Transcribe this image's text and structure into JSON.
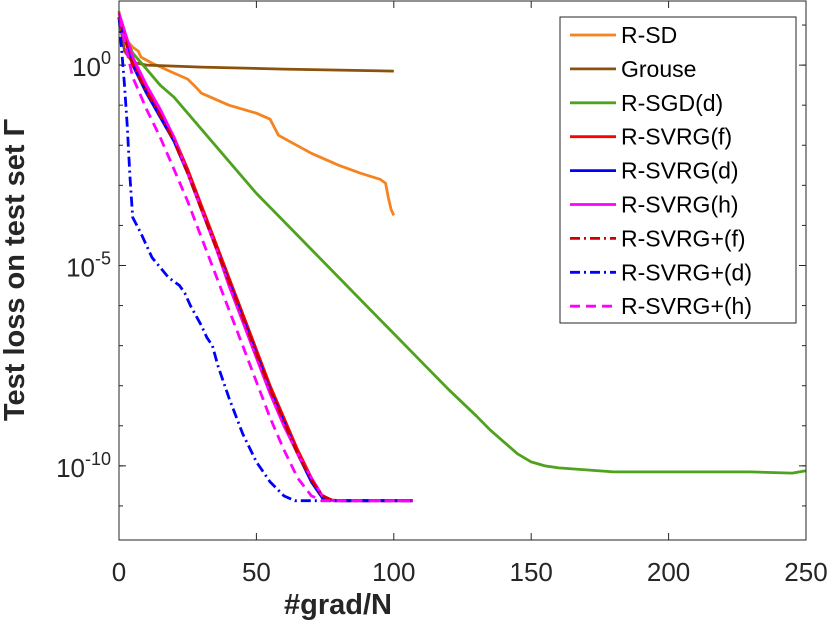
{
  "chart_data": {
    "type": "line",
    "title": "",
    "xlabel": "#grad/N",
    "ylabel": "Test loss on test set Γ",
    "xlim": [
      0,
      250
    ],
    "ylog10lim": [
      -11.85,
      1.6
    ],
    "xticks": [
      {
        "value": 0,
        "label": "0"
      },
      {
        "value": 50,
        "label": "50"
      },
      {
        "value": 100,
        "label": "100"
      },
      {
        "value": 150,
        "label": "150"
      },
      {
        "value": 200,
        "label": "200"
      },
      {
        "value": 250,
        "label": "250"
      }
    ],
    "yticks": [
      {
        "exp": 0,
        "label": "10",
        "sup": "0"
      },
      {
        "exp": -5,
        "label": "10",
        "sup": "-5"
      },
      {
        "exp": -10,
        "label": "10",
        "sup": "-10"
      }
    ],
    "legend_position": "top-right",
    "series": [
      {
        "name": "R-SD",
        "color": "#f5831f",
        "dash": "solid",
        "points": [
          [
            0,
            1.35
          ],
          [
            1,
            0.8
          ],
          [
            3,
            0.6
          ],
          [
            5,
            0.45
          ],
          [
            7,
            0.35
          ],
          [
            8,
            0.2
          ],
          [
            12,
            0.05
          ],
          [
            20,
            -0.2
          ],
          [
            25,
            -0.35
          ],
          [
            28,
            -0.55
          ],
          [
            30,
            -0.7
          ],
          [
            40,
            -1.0
          ],
          [
            50,
            -1.2
          ],
          [
            55,
            -1.35
          ],
          [
            58,
            -1.75
          ],
          [
            62,
            -1.9
          ],
          [
            70,
            -2.2
          ],
          [
            80,
            -2.5
          ],
          [
            88,
            -2.7
          ],
          [
            95,
            -2.85
          ],
          [
            97,
            -2.95
          ],
          [
            98,
            -3.3
          ],
          [
            99,
            -3.6
          ],
          [
            100,
            -3.75
          ]
        ]
      },
      {
        "name": "Grouse",
        "color": "#8c510a",
        "dash": "solid",
        "points": [
          [
            0,
            1.2
          ],
          [
            2,
            0.35
          ],
          [
            5,
            0.07
          ],
          [
            10,
            0.0
          ],
          [
            30,
            -0.05
          ],
          [
            60,
            -0.1
          ],
          [
            100,
            -0.15
          ]
        ]
      },
      {
        "name": "R-SGD(d)",
        "color": "#4ea21d",
        "dash": "solid",
        "points": [
          [
            0,
            1.1
          ],
          [
            5,
            0.3
          ],
          [
            10,
            -0.1
          ],
          [
            15,
            -0.5
          ],
          [
            20,
            -0.8
          ],
          [
            25,
            -1.2
          ],
          [
            30,
            -1.6
          ],
          [
            40,
            -2.4
          ],
          [
            50,
            -3.2
          ],
          [
            60,
            -3.9
          ],
          [
            70,
            -4.6
          ],
          [
            80,
            -5.3
          ],
          [
            90,
            -6.0
          ],
          [
            100,
            -6.7
          ],
          [
            110,
            -7.4
          ],
          [
            120,
            -8.1
          ],
          [
            130,
            -8.75
          ],
          [
            135,
            -9.1
          ],
          [
            140,
            -9.4
          ],
          [
            145,
            -9.7
          ],
          [
            150,
            -9.9
          ],
          [
            155,
            -10.0
          ],
          [
            160,
            -10.05
          ],
          [
            170,
            -10.1
          ],
          [
            180,
            -10.15
          ],
          [
            200,
            -10.15
          ],
          [
            230,
            -10.15
          ],
          [
            245,
            -10.18
          ],
          [
            250,
            -10.12
          ]
        ]
      },
      {
        "name": "R-SVRG(f)",
        "color": "#ff0000",
        "dash": "solid",
        "points": [
          [
            0,
            1.2
          ],
          [
            5,
            0.1
          ],
          [
            10,
            -0.6
          ],
          [
            15,
            -1.2
          ],
          [
            20,
            -1.8
          ],
          [
            25,
            -2.6
          ],
          [
            30,
            -3.5
          ],
          [
            35,
            -4.4
          ],
          [
            40,
            -5.3
          ],
          [
            45,
            -6.2
          ],
          [
            50,
            -7.1
          ],
          [
            55,
            -8.0
          ],
          [
            60,
            -8.8
          ],
          [
            65,
            -9.6
          ],
          [
            70,
            -10.3
          ],
          [
            73,
            -10.7
          ],
          [
            77,
            -10.85
          ],
          [
            80,
            -10.87
          ],
          [
            107,
            -10.87
          ]
        ]
      },
      {
        "name": "R-SVRG(d)",
        "color": "#0000ff",
        "dash": "solid",
        "points": [
          [
            0,
            1.2
          ],
          [
            5,
            0.0
          ],
          [
            10,
            -0.7
          ],
          [
            15,
            -1.3
          ],
          [
            20,
            -1.9
          ],
          [
            25,
            -2.7
          ],
          [
            30,
            -3.6
          ],
          [
            35,
            -4.5
          ],
          [
            40,
            -5.4
          ],
          [
            45,
            -6.3
          ],
          [
            50,
            -7.2
          ],
          [
            55,
            -8.1
          ],
          [
            60,
            -8.9
          ],
          [
            65,
            -9.7
          ],
          [
            70,
            -10.4
          ],
          [
            74,
            -10.8
          ],
          [
            78,
            -10.87
          ],
          [
            107,
            -10.87
          ]
        ]
      },
      {
        "name": "R-SVRG(h)",
        "color": "#ff00ff",
        "dash": "solid",
        "points": [
          [
            0,
            1.3
          ],
          [
            5,
            0.2
          ],
          [
            10,
            -0.5
          ],
          [
            15,
            -1.1
          ],
          [
            20,
            -1.8
          ],
          [
            25,
            -2.7
          ],
          [
            30,
            -3.6
          ],
          [
            35,
            -4.5
          ],
          [
            40,
            -5.5
          ],
          [
            45,
            -6.4
          ],
          [
            50,
            -7.3
          ],
          [
            55,
            -8.2
          ],
          [
            60,
            -9.0
          ],
          [
            65,
            -9.7
          ],
          [
            70,
            -10.3
          ],
          [
            74,
            -10.75
          ],
          [
            78,
            -10.87
          ],
          [
            107,
            -10.87
          ]
        ]
      },
      {
        "name": "R-SVRG+(f)",
        "color": "#cc0000",
        "dash": "dashdot",
        "points": [
          [
            0,
            1.15
          ],
          [
            5,
            0.0
          ],
          [
            10,
            -0.65
          ],
          [
            15,
            -1.25
          ],
          [
            20,
            -1.9
          ],
          [
            25,
            -2.7
          ],
          [
            30,
            -3.6
          ],
          [
            35,
            -4.5
          ],
          [
            40,
            -5.4
          ],
          [
            45,
            -6.3
          ],
          [
            50,
            -7.2
          ],
          [
            55,
            -8.1
          ],
          [
            60,
            -8.9
          ],
          [
            65,
            -9.7
          ],
          [
            70,
            -10.35
          ],
          [
            74,
            -10.75
          ],
          [
            78,
            -10.87
          ],
          [
            107,
            -10.87
          ]
        ]
      },
      {
        "name": "R-SVRG+(d)",
        "color": "#0000ff",
        "dash": "dashdot",
        "points": [
          [
            0,
            1.2
          ],
          [
            2,
            -0.5
          ],
          [
            3,
            -1.5
          ],
          [
            4,
            -2.8
          ],
          [
            5,
            -3.8
          ],
          [
            8,
            -4.2
          ],
          [
            12,
            -4.8
          ],
          [
            18,
            -5.3
          ],
          [
            22,
            -5.5
          ],
          [
            24,
            -5.7
          ],
          [
            26,
            -6.0
          ],
          [
            30,
            -6.5
          ],
          [
            32,
            -6.8
          ],
          [
            34,
            -7.0
          ],
          [
            36,
            -7.5
          ],
          [
            40,
            -8.3
          ],
          [
            45,
            -9.2
          ],
          [
            50,
            -9.9
          ],
          [
            55,
            -10.4
          ],
          [
            60,
            -10.75
          ],
          [
            64,
            -10.87
          ],
          [
            107,
            -10.87
          ]
        ]
      },
      {
        "name": "R-SVRG+(h)",
        "color": "#ff00ff",
        "dash": "dashed",
        "points": [
          [
            0,
            1.2
          ],
          [
            5,
            -0.3
          ],
          [
            10,
            -1.1
          ],
          [
            15,
            -1.8
          ],
          [
            20,
            -2.6
          ],
          [
            25,
            -3.4
          ],
          [
            30,
            -4.3
          ],
          [
            35,
            -5.2
          ],
          [
            40,
            -6.1
          ],
          [
            45,
            -7.0
          ],
          [
            50,
            -7.9
          ],
          [
            55,
            -8.8
          ],
          [
            60,
            -9.6
          ],
          [
            65,
            -10.3
          ],
          [
            70,
            -10.75
          ],
          [
            74,
            -10.87
          ],
          [
            107,
            -10.87
          ]
        ]
      }
    ]
  }
}
